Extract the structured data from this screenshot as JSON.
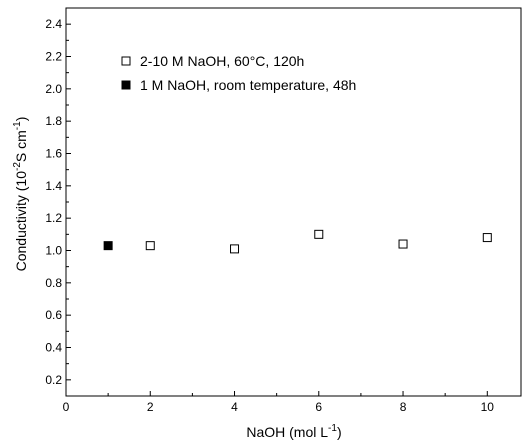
{
  "chart_data": {
    "type": "scatter",
    "xlabel": "NaOH (mol L",
    "xlabel_sup": "-1",
    "xlabel_end": ")",
    "ylabel": "Conductivity (10",
    "ylabel_sup1": "-2",
    "ylabel_mid": "S cm",
    "ylabel_sup2": "-1",
    "ylabel_end": ")",
    "xlim": [
      0,
      10.8
    ],
    "ylim": [
      0.1,
      2.5
    ],
    "x_ticks": [
      "0",
      "2",
      "4",
      "6",
      "8",
      "10"
    ],
    "y_ticks": [
      "0.2",
      "0.4",
      "0.6",
      "0.8",
      "1.0",
      "1.2",
      "1.4",
      "1.6",
      "1.8",
      "2.0",
      "2.2",
      "2.4"
    ],
    "legend_position": "top-left",
    "series": [
      {
        "name": "2-10 M NaOH, 60°C, 120h",
        "marker": "open-square",
        "x": [
          2,
          4,
          6,
          8,
          10
        ],
        "y": [
          1.03,
          1.01,
          1.1,
          1.04,
          1.08
        ]
      },
      {
        "name": "1 M NaOH, room temperature, 48h",
        "marker": "filled-square",
        "x": [
          1
        ],
        "y": [
          1.03
        ]
      }
    ]
  }
}
